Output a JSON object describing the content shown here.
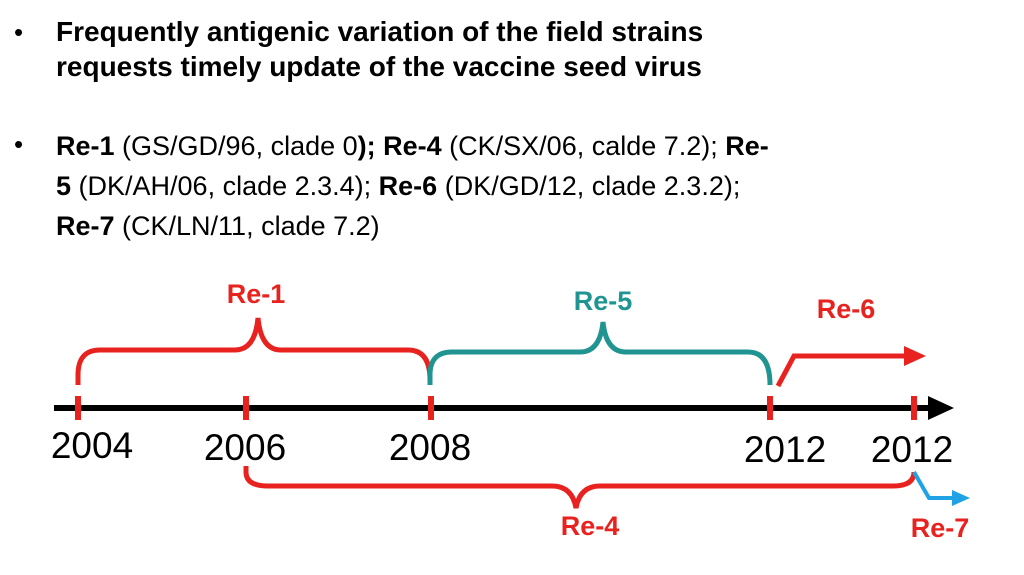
{
  "bullets": {
    "b1": {
      "dot": "•",
      "line1": "Frequently antigenic variation of the field strains",
      "line2": "requests timely update of the vaccine seed virus"
    },
    "b2": {
      "dot": "•",
      "strains": [
        {
          "name": "Re-1",
          "detail": " (GS/GD/96, clade 0"
        },
        {
          "name": "); Re-4",
          "detail": " (CK/SX/06, calde 7.2); "
        },
        {
          "name": "Re-",
          "detail": ""
        },
        {
          "name": "5",
          "detail": " (DK/AH/06, clade 2.3.4); "
        },
        {
          "name": "Re-6",
          "detail": " (DK/GD/12, clade 2.3.2);"
        },
        {
          "name": "Re-7",
          "detail": " (CK/LN/11, clade 7.2)"
        }
      ]
    }
  },
  "timeline": {
    "years": [
      "2004",
      "2006",
      "2008",
      "2012",
      "2012"
    ],
    "labels": {
      "re1": "Re-1",
      "re4": "Re-4",
      "re5": "Re-5",
      "re6": "Re-6",
      "re7": "Re-7"
    },
    "colors": {
      "red": "#e8231f",
      "teal": "#1f9490",
      "blue": "#1fa3e6",
      "axis": "#000000"
    }
  }
}
